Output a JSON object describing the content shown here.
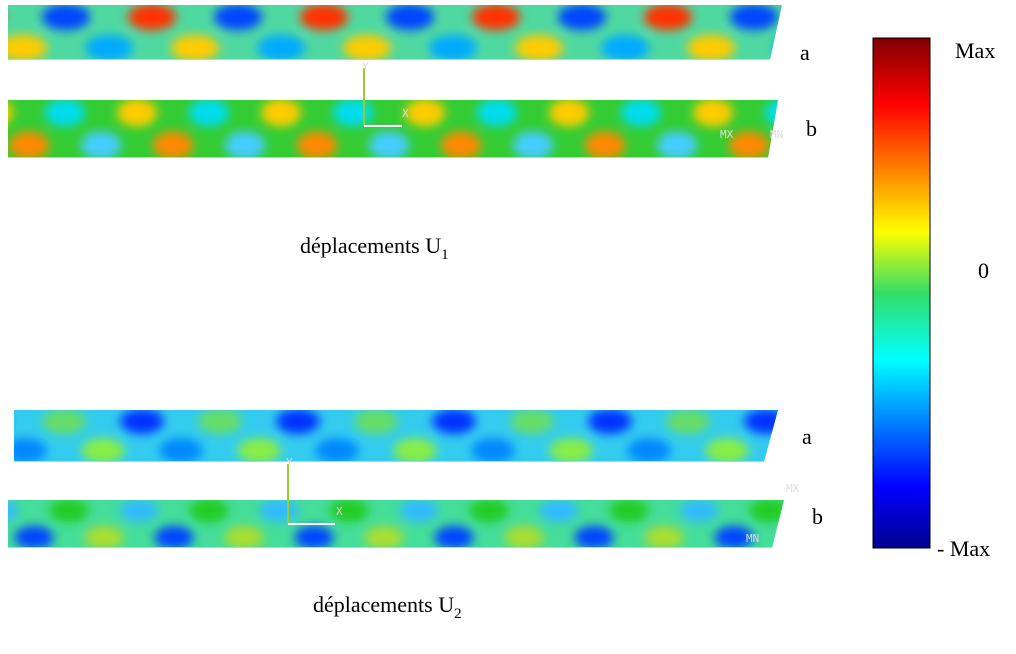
{
  "panels": [
    {
      "caption": {
        "text": "déplacements U",
        "subscript": "1"
      },
      "rows": [
        {
          "label": "a"
        },
        {
          "label": "b",
          "triad": [
            "Y",
            "X"
          ],
          "markers": [
            "MX",
            "MN"
          ]
        }
      ]
    },
    {
      "caption": {
        "text": "déplacements U",
        "subscript": "2"
      },
      "rows": [
        {
          "label": "a"
        },
        {
          "label": "b",
          "triad": [
            "Y",
            "X"
          ],
          "markers": [
            "MX",
            "MN"
          ]
        }
      ]
    }
  ],
  "colorbar": {
    "labels": [
      "Max",
      "0",
      "- Max"
    ]
  }
}
